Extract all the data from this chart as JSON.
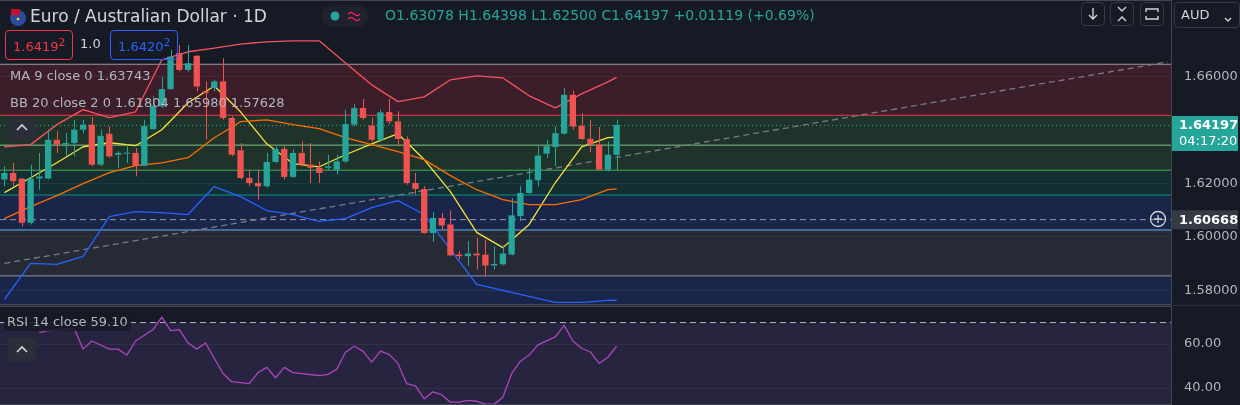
{
  "chart_data": [
    {
      "type": "candlestick",
      "title": "Euro / Australian Dollar · 1D",
      "subtitle": "O1.63078 H1.64398 L1.62500 C1.64197 +0.01119 (+0.69%)",
      "categories": [
        null,
        null,
        null,
        null,
        null,
        null,
        null,
        null,
        null,
        null,
        null,
        null,
        null,
        null,
        null,
        null,
        null,
        null,
        null,
        null,
        null,
        null,
        null,
        null,
        null,
        null,
        null,
        null,
        null,
        null,
        null,
        null,
        null,
        null,
        null,
        null,
        null,
        null,
        null,
        null,
        null,
        null,
        null,
        null,
        null,
        null,
        null,
        null,
        null,
        null,
        null,
        null,
        null,
        null,
        null,
        null,
        null,
        null,
        null,
        null,
        null,
        null,
        null,
        null,
        null,
        null,
        null,
        null,
        null,
        null,
        null,
        null,
        null,
        null,
        null,
        null,
        null,
        null,
        null,
        null,
        null,
        null,
        null,
        null,
        null,
        null,
        null,
        null,
        null,
        null,
        null,
        null,
        null,
        null,
        null,
        null,
        null,
        null,
        null,
        null,
        null,
        null,
        null,
        null,
        null,
        null,
        null,
        null,
        null,
        null,
        null,
        null,
        null,
        null,
        null,
        null,
        null,
        null,
        null,
        null,
        null,
        null,
        null,
        null,
        null,
        null,
        null,
        null,
        null,
        null,
        null,
        null,
        null,
        null
      ],
      "ohlc": [
        [
          1.6215,
          1.6265,
          1.619,
          1.624
        ],
        [
          1.624,
          1.6277,
          1.619,
          1.6209
        ],
        [
          1.6219,
          1.6221,
          1.604,
          1.6053
        ],
        [
          1.6053,
          1.6271,
          1.6047,
          1.6219
        ],
        [
          1.6219,
          1.6315,
          1.6177,
          1.6227
        ],
        [
          1.6219,
          1.6402,
          1.6215,
          1.6364
        ],
        [
          1.6364,
          1.6396,
          1.6315,
          1.6346
        ],
        [
          1.6346,
          1.6389,
          1.6302,
          1.6352
        ],
        [
          1.6352,
          1.6439,
          1.6302,
          1.6402
        ],
        [
          1.6402,
          1.6439,
          1.6389,
          1.6421
        ],
        [
          1.6421,
          1.6449,
          1.6265,
          1.6271
        ],
        [
          1.6271,
          1.6402,
          1.6265,
          1.6379
        ],
        [
          1.6387,
          1.6414,
          1.6296,
          1.6302
        ],
        [
          1.6308,
          1.6321,
          1.6259,
          1.6315
        ],
        [
          1.6312,
          1.6346,
          1.6277,
          1.6315
        ],
        [
          1.6315,
          1.6333,
          1.6227,
          1.6267
        ],
        [
          1.6267,
          1.6439,
          1.6265,
          1.6417
        ],
        [
          1.6404,
          1.6527,
          1.6402,
          1.6492
        ],
        [
          1.6489,
          1.6601,
          1.6483,
          1.6554
        ],
        [
          1.6554,
          1.6701,
          1.6552,
          1.6676
        ],
        [
          1.6689,
          1.672,
          1.662,
          1.6626
        ],
        [
          1.6626,
          1.672,
          1.662,
          1.6651
        ],
        [
          1.6679,
          1.6682,
          1.6545,
          1.6564
        ],
        [
          1.6545,
          1.6583,
          1.6364,
          1.6539
        ],
        [
          1.6558,
          1.6589,
          1.6545,
          1.6583
        ],
        [
          1.6583,
          1.667,
          1.6439,
          1.6446
        ],
        [
          1.6446,
          1.6452,
          1.6302,
          1.6308
        ],
        [
          1.6325,
          1.6352,
          1.6215,
          1.6221
        ],
        [
          1.6221,
          1.6252,
          1.619,
          1.6202
        ],
        [
          1.6202,
          1.6252,
          1.614,
          1.619
        ],
        [
          1.619,
          1.6315,
          1.6184,
          1.6281
        ],
        [
          1.6281,
          1.634,
          1.6277,
          1.633
        ],
        [
          1.633,
          1.634,
          1.6215,
          1.6225
        ],
        [
          1.6225,
          1.6327,
          1.6221,
          1.6315
        ],
        [
          1.6315,
          1.6358,
          1.6265,
          1.6271
        ],
        [
          1.6271,
          1.6352,
          1.6202,
          1.6259
        ],
        [
          1.6259,
          1.6283,
          1.6202,
          1.624
        ],
        [
          1.6259,
          1.6308,
          1.6252,
          1.6265
        ],
        [
          1.6252,
          1.6308,
          1.6234,
          1.6283
        ],
        [
          1.6283,
          1.6477,
          1.6277,
          1.6423
        ],
        [
          1.6421,
          1.6499,
          1.6414,
          1.6483
        ],
        [
          1.6483,
          1.6517,
          1.6439,
          1.6446
        ],
        [
          1.6418,
          1.6446,
          1.6358,
          1.6364
        ],
        [
          1.6364,
          1.6477,
          1.6358,
          1.6467
        ],
        [
          1.6468,
          1.6517,
          1.6423,
          1.6433
        ],
        [
          1.6433,
          1.6471,
          1.634,
          1.6367
        ],
        [
          1.6367,
          1.6377,
          1.6196,
          1.6202
        ],
        [
          1.6202,
          1.624,
          1.6159,
          1.618
        ],
        [
          1.618,
          1.619,
          1.6013,
          1.6015
        ],
        [
          1.6015,
          1.6093,
          1.5982,
          1.6071
        ],
        [
          1.6071,
          1.609,
          1.6028,
          1.6043
        ],
        [
          1.6047,
          1.61,
          1.5928,
          1.5931
        ],
        [
          1.5934,
          1.5947,
          1.5916,
          1.5928
        ],
        [
          1.5928,
          1.5984,
          1.5891,
          1.5938
        ],
        [
          1.5938,
          1.5997,
          1.5878,
          1.5931
        ],
        [
          1.5934,
          1.599,
          1.5853,
          1.5893
        ],
        [
          1.5893,
          1.5965,
          1.5878,
          1.5899
        ],
        [
          1.5897,
          1.5968,
          1.5893,
          1.5938
        ],
        [
          1.5934,
          1.6146,
          1.5931,
          1.6081
        ],
        [
          1.6078,
          1.619,
          1.6059,
          1.6165
        ],
        [
          1.6165,
          1.6259,
          1.6159,
          1.6215
        ],
        [
          1.6212,
          1.634,
          1.619,
          1.6305
        ],
        [
          1.6312,
          1.6364,
          1.6296,
          1.634
        ],
        [
          1.6337,
          1.6414,
          1.6265,
          1.6389
        ],
        [
          1.6387,
          1.6558,
          1.6383,
          1.6533
        ],
        [
          1.6533,
          1.6548,
          1.6402,
          1.6414
        ],
        [
          1.6417,
          1.6464,
          1.6364,
          1.6367
        ],
        [
          1.6368,
          1.6439,
          1.6317,
          1.6346
        ],
        [
          1.6346,
          1.6412,
          1.6252,
          1.6252
        ],
        [
          1.6252,
          1.6358,
          1.6246,
          1.6308
        ],
        [
          1.63078,
          1.64398,
          1.625,
          1.64197
        ],
        null,
        null,
        null,
        null,
        null,
        null,
        null,
        null,
        null,
        null,
        null,
        null,
        null,
        null,
        null,
        null,
        null,
        null,
        null,
        null,
        null,
        null,
        null,
        null,
        null,
        null,
        null,
        null,
        null,
        null,
        null,
        null,
        null,
        null,
        null,
        null,
        null,
        null,
        null,
        null,
        null,
        null,
        null,
        null,
        null,
        null,
        null,
        null,
        null,
        null,
        null,
        null,
        null,
        null,
        null,
        null,
        null,
        null,
        null,
        null,
        null,
        null,
        null
      ],
      "series": [
        {
          "type": "line",
          "color": "#f7525f",
          "values": [
            1.6338,
            null,
            null,
            1.6346,
            null,
            null,
            1.6421,
            null,
            null,
            1.6477,
            null,
            null,
            1.6447,
            null,
            null,
            1.6469,
            null,
            null,
            1.6664,
            null,
            null,
            1.6694,
            null,
            null,
            1.6708,
            null,
            null,
            1.6723,
            null,
            null,
            1.6731,
            null,
            null,
            1.6735,
            null,
            null,
            1.6735,
            null,
            null,
            1.6652,
            null,
            null,
            1.657,
            null,
            null,
            1.6507,
            null,
            null,
            1.6525,
            null,
            null,
            1.6589,
            null,
            null,
            1.6604,
            null,
            null,
            1.6596,
            null,
            null,
            1.6529,
            null,
            null,
            1.6484,
            null,
            null,
            1.6536,
            null,
            null,
            1.6581,
            1.6598,
            null,
            null,
            null,
            null,
            null,
            null,
            null,
            null,
            null,
            null,
            null,
            null,
            null,
            null,
            null,
            null,
            null,
            null,
            null,
            null,
            null,
            null,
            null,
            null,
            null,
            null,
            null,
            null,
            null,
            null,
            null,
            null,
            null,
            null,
            null,
            null,
            null,
            null,
            null,
            null,
            null,
            null,
            null,
            null,
            null,
            null,
            null,
            null,
            null,
            null,
            null,
            null,
            null,
            null,
            null,
            null,
            null,
            null,
            null,
            null,
            null,
            null,
            null
          ]
        },
        {
          "type": "line",
          "color": "#ff6d00",
          "values": [
            1.6069,
            null,
            null,
            1.6114,
            null,
            null,
            1.6155,
            null,
            null,
            1.62,
            null,
            null,
            1.6241,
            null,
            null,
            1.6267,
            null,
            null,
            1.6278,
            null,
            null,
            1.6297,
            null,
            null,
            1.6372,
            null,
            null,
            1.6432,
            null,
            null,
            1.6439,
            null,
            null,
            1.6421,
            null,
            null,
            1.6406,
            null,
            null,
            1.6372,
            null,
            null,
            1.6346,
            null,
            null,
            1.632,
            null,
            null,
            1.629,
            null,
            null,
            1.623,
            null,
            null,
            1.6177,
            null,
            null,
            1.614,
            null,
            null,
            1.6121,
            null,
            null,
            1.6121,
            null,
            null,
            1.614,
            null,
            null,
            1.6177,
            1.61804,
            null,
            null,
            null,
            null,
            null,
            null,
            null,
            null,
            null,
            null,
            null,
            null,
            null,
            null,
            null,
            null,
            null,
            null,
            null,
            null,
            null,
            null,
            null,
            null,
            null,
            null,
            null,
            null,
            null,
            null,
            null,
            null,
            null,
            null,
            null,
            null,
            null,
            null,
            null,
            null,
            null,
            null,
            null,
            null,
            null,
            null,
            null,
            null,
            null,
            null,
            null,
            null,
            null,
            null,
            null,
            null,
            null,
            null,
            null,
            null,
            null,
            null,
            null
          ]
        },
        {
          "type": "line",
          "color": "#2962ff",
          "values": [
            1.5766,
            null,
            null,
            1.5901,
            null,
            null,
            1.5897,
            null,
            null,
            1.5927,
            null,
            null,
            1.6076,
            null,
            null,
            1.6095,
            null,
            null,
            1.6091,
            null,
            null,
            1.6084,
            null,
            null,
            1.6189,
            null,
            null,
            1.6151,
            null,
            null,
            1.6099,
            null,
            null,
            1.6084,
            null,
            null,
            1.6058,
            null,
            null,
            1.6069,
            null,
            null,
            1.611,
            null,
            null,
            1.6136,
            null,
            null,
            1.6084,
            null,
            null,
            1.5953,
            null,
            null,
            1.5822,
            null,
            null,
            null,
            null,
            null,
            null,
            null,
            null,
            1.5755,
            null,
            null,
            1.5755,
            null,
            null,
            1.5762,
            1.57628,
            null,
            null,
            null,
            null,
            null,
            null,
            null,
            null,
            null,
            null,
            null,
            null,
            null,
            null,
            null,
            null,
            null,
            null,
            null,
            null,
            null,
            null,
            null,
            null,
            null,
            null,
            null,
            null,
            null,
            null,
            null,
            null,
            null,
            null,
            null,
            null,
            null,
            null,
            null,
            null,
            null,
            null,
            null,
            null,
            null,
            null,
            null,
            null,
            null,
            null,
            null,
            null,
            null,
            null,
            null,
            null,
            null,
            null,
            null,
            null,
            null,
            null,
            null
          ]
        },
        {
          "type": "line",
          "color": "#f6e43a",
          "values": [
            1.6166,
            null,
            null,
            1.6222,
            null,
            null,
            1.6278,
            null,
            null,
            1.6338,
            null,
            null,
            1.6353,
            null,
            null,
            1.6342,
            null,
            null,
            1.6402,
            null,
            null,
            1.6503,
            null,
            null,
            1.6566,
            null,
            null,
            1.6469,
            null,
            null,
            1.6349,
            null,
            null,
            1.6275,
            null,
            null,
            1.6263,
            null,
            null,
            1.6308,
            null,
            null,
            1.6349,
            null,
            null,
            1.6387,
            null,
            null,
            1.629,
            null,
            null,
            1.617,
            null,
            null,
            1.6017,
            null,
            null,
            1.596,
            null,
            null,
            1.6047,
            null,
            null,
            1.6204,
            null,
            null,
            1.6338,
            null,
            null,
            1.6372,
            1.63743,
            null,
            null,
            null,
            null,
            null,
            null,
            null,
            null,
            null,
            null,
            null,
            null,
            null,
            null,
            null,
            null,
            null,
            null,
            null,
            null,
            null,
            null,
            null,
            null,
            null,
            null,
            null,
            null,
            null,
            null,
            null,
            null,
            null,
            null,
            null,
            null,
            null,
            null,
            null,
            null,
            null,
            null,
            null,
            null,
            null,
            null,
            null,
            null,
            null,
            null,
            null,
            null,
            null,
            null,
            null,
            null,
            null,
            null,
            null,
            null,
            null,
            null,
            null
          ]
        },
        {
          "type": "line",
          "color": "#787b86",
          "line_style": "dashed",
          "values": [
            1.5901,
            null,
            null,
            null,
            null,
            null,
            null,
            null,
            null,
            null,
            null,
            null,
            null,
            null,
            null,
            null,
            null,
            null,
            null,
            null,
            null,
            null,
            null,
            null,
            null,
            null,
            null,
            null,
            null,
            null,
            null,
            null,
            null,
            null,
            null,
            null,
            null,
            null,
            null,
            null,
            null,
            null,
            null,
            null,
            null,
            null,
            null,
            null,
            null,
            null,
            null,
            null,
            null,
            null,
            null,
            null,
            null,
            null,
            null,
            null,
            null,
            null,
            null,
            null,
            null,
            null,
            null,
            null,
            null,
            null,
            null,
            null,
            null,
            null,
            null,
            null,
            null,
            null,
            null,
            null,
            null,
            null,
            null,
            null,
            null,
            null,
            null,
            null,
            null,
            null,
            null,
            null,
            null,
            null,
            null,
            null,
            null,
            null,
            null,
            null,
            null,
            null,
            null,
            null,
            null,
            null,
            null,
            null,
            null,
            null,
            null,
            null,
            null,
            null,
            null,
            null,
            null,
            null,
            null,
            null,
            null,
            null,
            null,
            null,
            null,
            null,
            null,
            null,
            null,
            null,
            null,
            null,
            null,
            1.6656
          ]
        }
      ],
      "ylim": [
        1.5745,
        1.6888
      ],
      "yticks": [
        {
          "value": 1.58,
          "label": "1.58000"
        },
        {
          "value": 1.6,
          "label": "1.60000"
        },
        {
          "value": 1.62,
          "label": "1.62000"
        },
        {
          "value": 1.66,
          "label": "1.66000"
        }
      ],
      "grid": "y",
      "tick_labels": "y",
      "bands": [
        {
          "axis": "y",
          "from": 1.6458,
          "to": 1.6649,
          "color": "#f23645"
        },
        {
          "axis": "y",
          "from": 1.6346,
          "to": 1.6458,
          "color": "#4caf50"
        },
        {
          "axis": "y",
          "from": 1.6252,
          "to": 1.6346,
          "color": "#4caf50"
        },
        {
          "axis": "y",
          "from": 1.6159,
          "to": 1.6252,
          "color": "#089981"
        },
        {
          "axis": "y",
          "from": 1.6028,
          "to": 1.6159,
          "color": "#2962ff"
        },
        {
          "axis": "y",
          "from": 1.5856,
          "to": 1.6028,
          "color": "#787b86"
        },
        {
          "axis": "y",
          "from": 1.5745,
          "to": 1.5856,
          "color": "#2962ff"
        }
      ],
      "ref_lines": [
        {
          "axis": "y",
          "value": 1.6649,
          "color": "#9598a1"
        },
        {
          "axis": "y",
          "value": 1.6458,
          "color": "#f23645"
        },
        {
          "axis": "y",
          "value": 1.6346,
          "color": "#81c784"
        },
        {
          "axis": "y",
          "value": 1.6252,
          "color": "#4caf50"
        },
        {
          "axis": "y",
          "value": 1.6159,
          "color": "#089981"
        },
        {
          "axis": "y",
          "value": 1.6028,
          "color": "#64b5f6"
        },
        {
          "axis": "y",
          "value": 1.5856,
          "color": "#9598a1"
        },
        {
          "axis": "y",
          "value": 1.64197,
          "label": "1.64197\n04:17:20",
          "color": "#26a69a",
          "line_style": "dotted"
        },
        {
          "axis": "y",
          "value": 1.60668,
          "label": "1.60668",
          "color": "#9598a1",
          "line_style": "dashed"
        }
      ],
      "annotations": [
        "1.6419$^{2}$",
        "1.0",
        "1.6420$^{2}$",
        "MA 9 close 0 1.63743",
        "BB 20 close 2 0 1.61804 1.65980 1.57628",
        "AUD"
      ]
    },
    {
      "type": "line",
      "categories": [
        null,
        null,
        null,
        null,
        null,
        null,
        null,
        null,
        null,
        null,
        null,
        null,
        null,
        null,
        null,
        null,
        null,
        null,
        null,
        null,
        null,
        null,
        null,
        null,
        null,
        null,
        null,
        null,
        null,
        null,
        null,
        null,
        null,
        null,
        null,
        null,
        null,
        null,
        null,
        null,
        null,
        null,
        null,
        null,
        null,
        null,
        null,
        null,
        null,
        null,
        null,
        null,
        null,
        null,
        null,
        null,
        null,
        null,
        null,
        null,
        null,
        null,
        null,
        null,
        null,
        null,
        null,
        null,
        null,
        null,
        null,
        null,
        null,
        null,
        null,
        null,
        null,
        null,
        null,
        null,
        null,
        null,
        null,
        null,
        null,
        null,
        null,
        null,
        null,
        null,
        null,
        null,
        null,
        null,
        null,
        null,
        null,
        null,
        null,
        null,
        null,
        null,
        null,
        null,
        null,
        null,
        null,
        null,
        null,
        null,
        null,
        null,
        null,
        null,
        null,
        null,
        null,
        null,
        null,
        null,
        null,
        null,
        null,
        null,
        null,
        null,
        null,
        null,
        null,
        null,
        null,
        null,
        null,
        null
      ],
      "series": [
        {
          "color": "#ab47bc",
          "values": [
            null,
            null,
            null,
            null,
            65.2,
            66.1,
            null,
            null,
            67.0,
            57.7,
            61.4,
            null,
            57.7,
            57.7,
            55.0,
            61.4,
            null,
            66.6,
            72.2,
            66.1,
            66.6,
            60.5,
            57.7,
            60.5,
            null,
            46.6,
            42.9,
            null,
            42.0,
            47.0,
            49.4,
            44.7,
            49.4,
            47.0,
            null,
            null,
            45.7,
            46.2,
            48.5,
            56.3,
            59.0,
            56.8,
            51.8,
            56.8,
            55.3,
            51.2,
            42.0,
            41.0,
            35.1,
            38.3,
            37.0,
            33.6,
            33.6,
            34.4,
            34.0,
            32.7,
            32.7,
            35.8,
            46.6,
            52.2,
            55.0,
            59.6,
            null,
            63.3,
            68.5,
            61.4,
            58.1,
            56.4,
            51.2,
            54.0,
            59.1,
            null,
            null,
            null,
            null,
            null,
            null,
            null,
            null,
            null,
            null,
            null,
            null,
            null,
            null,
            null,
            null,
            null,
            null,
            null,
            null,
            null,
            null,
            null,
            null,
            null,
            null,
            null,
            null,
            null,
            null,
            null,
            null,
            null,
            null,
            null,
            null,
            null,
            null,
            null,
            null,
            null,
            null,
            null,
            null,
            null,
            null,
            null,
            null,
            null,
            null,
            null,
            null,
            null,
            null,
            null,
            null,
            null,
            null,
            null,
            null,
            null,
            null,
            null
          ]
        }
      ],
      "ylim": [
        32.3,
        77.3
      ],
      "yticks": [
        {
          "value": 40,
          "label": "40.00"
        },
        {
          "value": 60,
          "label": "60.00"
        }
      ],
      "grid": "y",
      "tick_labels": "y",
      "bands": [
        {
          "axis": "y",
          "from": 32.3,
          "to": 70,
          "color": "#7e57c2"
        }
      ],
      "ref_lines": [
        {
          "axis": "y",
          "value": 70,
          "color": "#b2b5be",
          "line_style": "dashed"
        }
      ],
      "annotations": [
        "RSI 14 close 59.10"
      ]
    }
  ]
}
